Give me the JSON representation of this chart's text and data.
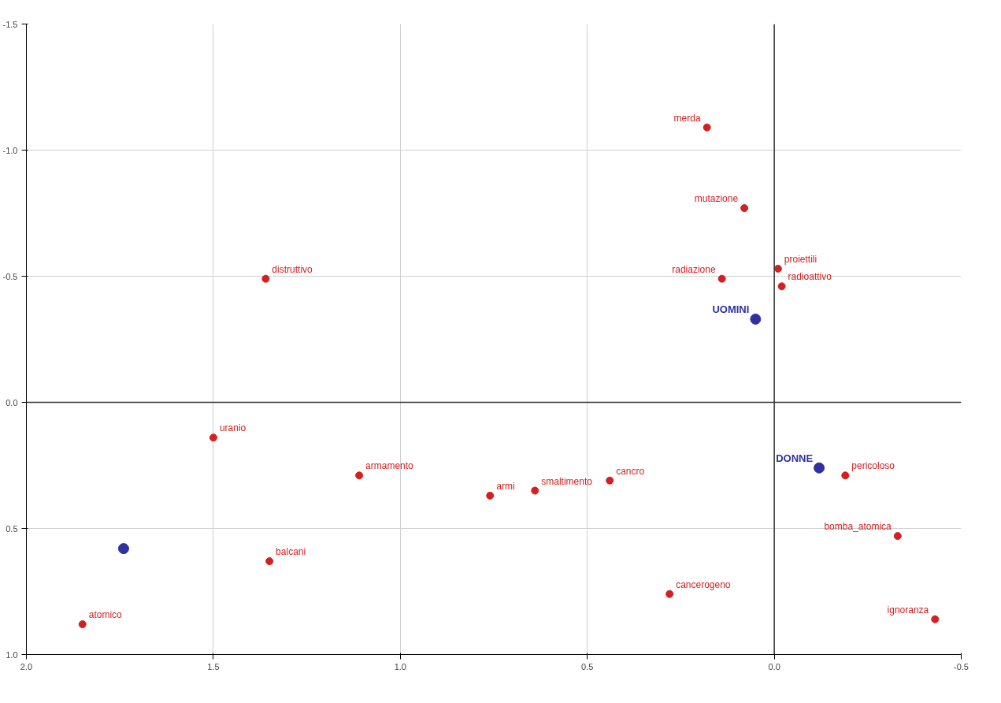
{
  "chart_data": {
    "type": "scatter",
    "xlim": [
      2.0,
      -0.5
    ],
    "ylim": [
      1.0,
      -1.5
    ],
    "xticks": [
      {
        "value": 2.0,
        "label": "2.0"
      },
      {
        "value": 1.5,
        "label": "1.5"
      },
      {
        "value": 1.0,
        "label": "1.0"
      },
      {
        "value": 0.5,
        "label": "0.5"
      },
      {
        "value": 0.0,
        "label": "0.0"
      },
      {
        "value": -0.5,
        "label": "-0.5"
      }
    ],
    "yticks": [
      {
        "value": -1.5,
        "label": "-1.5"
      },
      {
        "value": -1.0,
        "label": "-1.0"
      },
      {
        "value": -0.5,
        "label": "-0.5"
      },
      {
        "value": 0.0,
        "label": "0.0"
      },
      {
        "value": 0.5,
        "label": "0.5"
      },
      {
        "value": 1.0,
        "label": "1.0"
      }
    ],
    "grid": true,
    "marker": "circle",
    "series": [
      {
        "color": "#d42020",
        "x": [
          0.18,
          0.08,
          -0.01,
          0.14,
          -0.02,
          1.36,
          1.5,
          1.11,
          0.76,
          0.64,
          0.44,
          -0.19,
          -0.33,
          -0.43,
          0.28,
          1.35,
          1.85
        ],
        "values": [
          -1.09,
          -0.77,
          -0.53,
          -0.49,
          -0.46,
          -0.49,
          0.14,
          0.29,
          0.37,
          0.35,
          0.31,
          0.29,
          0.53,
          0.86,
          0.76,
          0.63,
          0.88
        ]
      },
      {
        "name": "UOMINI",
        "color": "#3030a0",
        "x": [
          0.05
        ],
        "values": [
          -0.33
        ]
      },
      {
        "name": "DONNE",
        "color": "#3030a0",
        "x": [
          -0.12
        ],
        "values": [
          0.26
        ]
      },
      {
        "color": "#3030a0",
        "x": [
          1.74
        ],
        "values": [
          0.58
        ]
      }
    ],
    "annotations": [
      {
        "text": "merda",
        "x": 0.18,
        "y": -1.09
      },
      {
        "text": "mutazione",
        "x": 0.08,
        "y": -0.77
      },
      {
        "text": "proiettili",
        "x": -0.01,
        "y": -0.53
      },
      {
        "text": "radiazione",
        "x": 0.14,
        "y": -0.49
      },
      {
        "text": "radioattivo",
        "x": -0.02,
        "y": -0.46
      },
      {
        "text": "distruttivo",
        "x": 1.36,
        "y": -0.49
      },
      {
        "text": "uranio",
        "x": 1.5,
        "y": 0.14
      },
      {
        "text": "armamento",
        "x": 1.11,
        "y": 0.29
      },
      {
        "text": "armi",
        "x": 0.76,
        "y": 0.37
      },
      {
        "text": "smaltimento",
        "x": 0.64,
        "y": 0.35
      },
      {
        "text": "cancro",
        "x": 0.44,
        "y": 0.31
      },
      {
        "text": "pericoloso",
        "x": -0.19,
        "y": 0.29
      },
      {
        "text": "bomba_atomica",
        "x": -0.33,
        "y": 0.53
      },
      {
        "text": "ignoranza",
        "x": -0.43,
        "y": 0.86
      },
      {
        "text": "cancerogeno",
        "x": 0.28,
        "y": 0.76
      },
      {
        "text": "balcani",
        "x": 1.35,
        "y": 0.63
      },
      {
        "text": "atomico",
        "x": 1.85,
        "y": 0.88
      }
    ]
  }
}
